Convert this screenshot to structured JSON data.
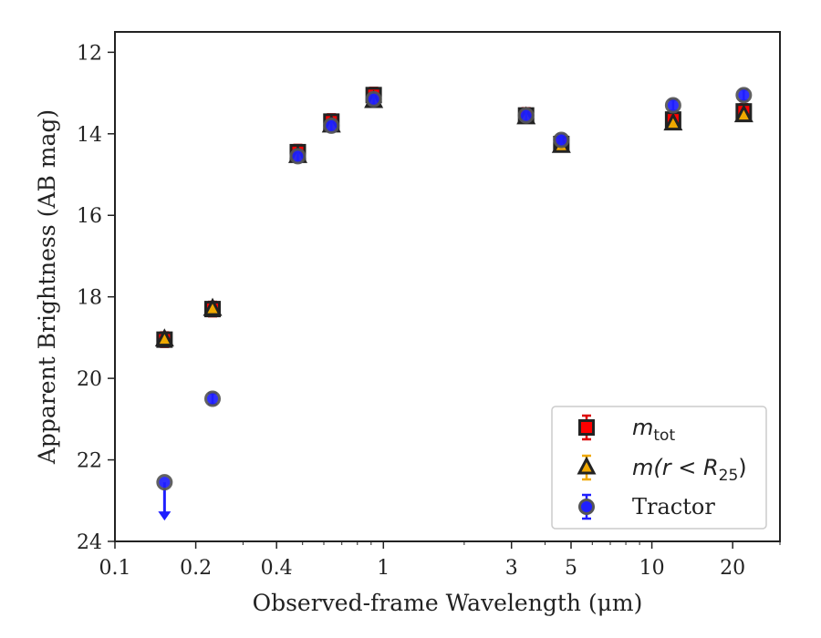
{
  "chart_data": {
    "type": "scatter",
    "title": "",
    "xlabel": "Observed-frame Wavelength (μm)",
    "ylabel": "Apparent Brightness (AB mag)",
    "xscale": "log",
    "xlim": [
      0.1,
      30
    ],
    "ylim": [
      24,
      11.5
    ],
    "y_inverted": true,
    "x_ticks": [
      0.1,
      0.2,
      0.4,
      1,
      3,
      5,
      10,
      20
    ],
    "x_tick_labels": [
      "0.1",
      "0.2",
      "0.4",
      "1",
      "3",
      "5",
      "10",
      "20"
    ],
    "y_ticks": [
      12,
      14,
      16,
      18,
      20,
      22,
      24
    ],
    "y_tick_labels": [
      "12",
      "14",
      "16",
      "18",
      "20",
      "22",
      "24"
    ],
    "grid": false,
    "legend_position": "lower-right",
    "legend": [
      {
        "series": "mtot",
        "symbol": "m",
        "subscript": "tot",
        "marker": "square",
        "fill": "#ff0000",
        "errorbar": "#dd0000"
      },
      {
        "series": "mr25",
        "symbol": "m(r < R",
        "subscript": "25",
        "suffix": ")",
        "marker": "triangle",
        "fill": "#f0a800",
        "errorbar": "#f0a800"
      },
      {
        "series": "tractor",
        "text": "Tractor",
        "marker": "circle",
        "fill": "#1f1fff",
        "errorbar": "#1f1fff"
      }
    ],
    "series": [
      {
        "id": "mtot",
        "marker": "square",
        "fill": "#ff0000",
        "edge": "#222222",
        "x": [
          0.153,
          0.231,
          0.48,
          0.64,
          0.92,
          3.4,
          4.6,
          12.0,
          22.0
        ],
        "y": [
          19.05,
          18.3,
          14.45,
          13.7,
          13.05,
          13.55,
          14.25,
          13.65,
          13.45
        ]
      },
      {
        "id": "mr25",
        "marker": "triangle",
        "fill": "#f0a800",
        "edge": "#222222",
        "x": [
          0.153,
          0.231,
          0.48,
          0.64,
          0.92,
          3.4,
          4.6,
          12.0,
          22.0
        ],
        "y": [
          19.05,
          18.3,
          14.55,
          13.8,
          13.2,
          13.6,
          14.3,
          13.75,
          13.55
        ]
      },
      {
        "id": "tractor",
        "marker": "circle",
        "fill": "#1f1fff",
        "edge": "#555555",
        "x": [
          0.153,
          0.231,
          0.48,
          0.64,
          0.92,
          3.4,
          4.6,
          12.0,
          22.0
        ],
        "y": [
          22.55,
          20.5,
          14.55,
          13.8,
          13.15,
          13.55,
          14.15,
          13.3,
          13.05
        ],
        "upper_limit_index": 0
      }
    ]
  }
}
